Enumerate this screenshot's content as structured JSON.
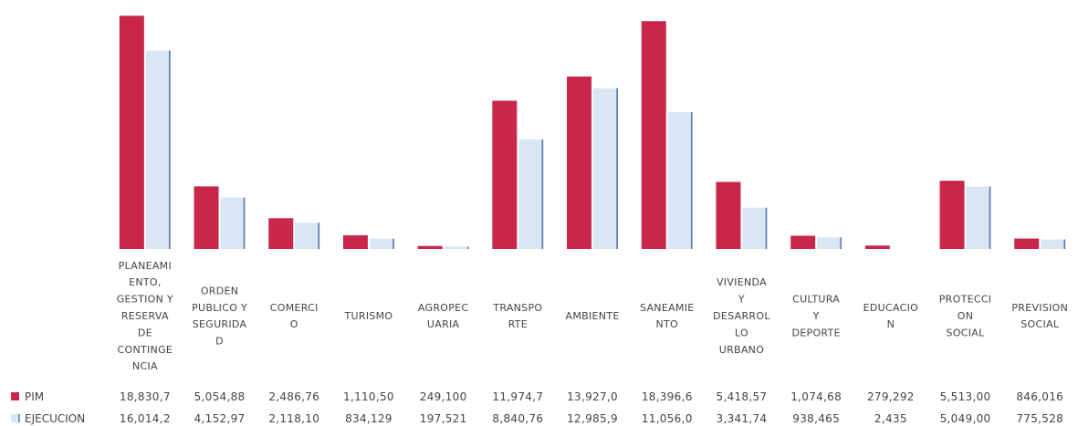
{
  "chart_data": {
    "type": "bar",
    "categories": [
      [
        "PLANEAMI",
        "ENTO,",
        "GESTION Y",
        "RESERVA",
        "DE",
        "CONTINGE",
        "NCIA"
      ],
      [
        "ORDEN",
        "PUBLICO Y",
        "SEGURIDA",
        "D"
      ],
      [
        "COMERCI",
        "O"
      ],
      [
        "TURISMO"
      ],
      [
        "AGROPEC",
        "UARIA"
      ],
      [
        "TRANSPO",
        "RTE"
      ],
      [
        "AMBIENTE"
      ],
      [
        "SANEAMIE",
        "NTO"
      ],
      [
        "VIVIENDA",
        "Y",
        "DESARROL",
        "LO",
        "URBANO"
      ],
      [
        "CULTURA",
        "Y",
        "DEPORTE"
      ],
      [
        "EDUCACIO",
        "N"
      ],
      [
        "PROTECCI",
        "ON",
        "SOCIAL"
      ],
      [
        "PREVISION",
        "SOCIAL"
      ]
    ],
    "series": [
      {
        "name": "PIM",
        "color": "#c8264a",
        "values": [
          18830.7,
          5054.88,
          2486.76,
          1110.5,
          249.1,
          11974.7,
          13927.0,
          18396.6,
          5418.57,
          1074.68,
          279.292,
          5513.0,
          846.016
        ],
        "labels": [
          "18,830,7",
          "5,054,88",
          "2,486,76",
          "1,110,50",
          "249,100",
          "11,974,7",
          "13,927,0",
          "18,396,6",
          "5,418,57",
          "1,074,68",
          "279,292",
          "5,513,00",
          "846,016"
        ]
      },
      {
        "name": "EJECUCION",
        "color": "#d9e6f4",
        "edge": "#5b79a8",
        "values": [
          16014.2,
          4152.97,
          2118.1,
          834.129,
          197.521,
          8840.76,
          12985.9,
          11056.0,
          3341.74,
          938.465,
          2.435,
          5049.0,
          775.528
        ],
        "labels": [
          "16,014,2",
          "4,152,97",
          "2,118,10",
          "834,129",
          "197,521",
          "8,840,76",
          "12,985,9",
          "11,056,0",
          "3,341,74",
          "938,465",
          "2,435",
          "5,049,00",
          "775,528"
        ]
      }
    ],
    "ylim": [
      0,
      19000
    ],
    "grid": false,
    "legend": "data-table-left"
  }
}
